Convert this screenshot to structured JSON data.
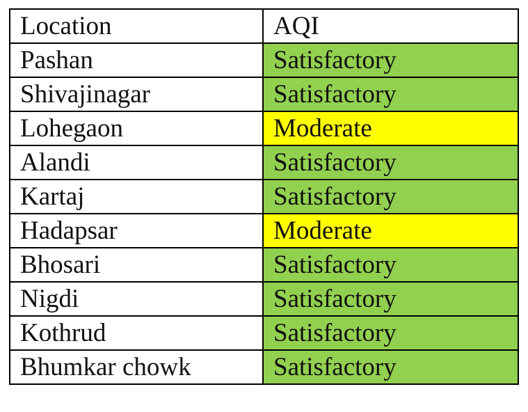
{
  "table": {
    "headers": {
      "location": "Location",
      "aqi": "AQI"
    },
    "colors": {
      "Satisfactory": "#92d050",
      "Moderate": "#ffff00",
      "header": "#ffffff"
    },
    "rows": [
      {
        "location": "Pashan",
        "aqi": "Satisfactory"
      },
      {
        "location": "Shivajinagar",
        "aqi": "Satisfactory"
      },
      {
        "location": "Lohegaon",
        "aqi": "Moderate"
      },
      {
        "location": "Alandi",
        "aqi": "Satisfactory"
      },
      {
        "location": "Kartaj",
        "aqi": "Satisfactory"
      },
      {
        "location": "Hadapsar",
        "aqi": "Moderate"
      },
      {
        "location": "Bhosari",
        "aqi": "Satisfactory"
      },
      {
        "location": "Nigdi",
        "aqi": "Satisfactory"
      },
      {
        "location": "Kothrud",
        "aqi": "Satisfactory"
      },
      {
        "location": "Bhumkar chowk",
        "aqi": "Satisfactory"
      }
    ]
  }
}
